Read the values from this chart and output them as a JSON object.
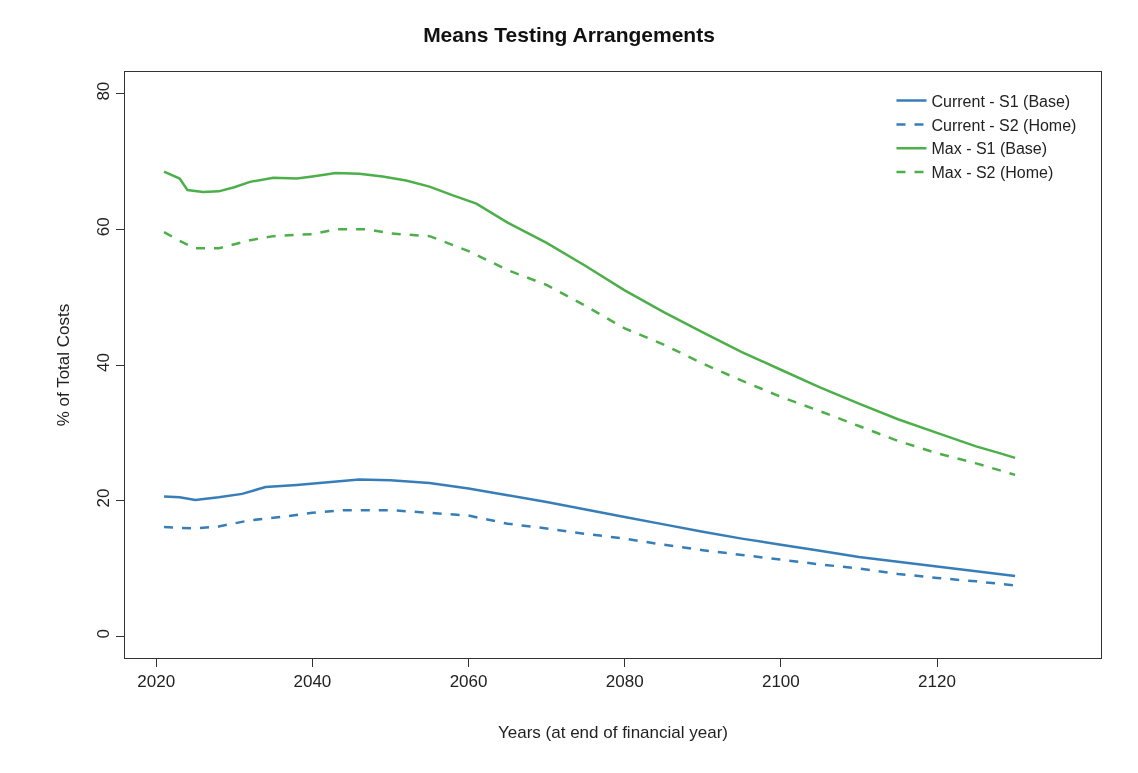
{
  "chart_data": {
    "type": "line",
    "title": "Means Testing Arrangements",
    "xlabel": "Years (at end of financial year)",
    "ylabel": "% of Total Costs",
    "xlim": [
      2016,
      2141
    ],
    "xticks": [
      2020,
      2040,
      2060,
      2080,
      2100,
      2120
    ],
    "ylim": [
      -3.2,
      83.2
    ],
    "yticks": [
      0,
      20,
      40,
      60,
      80
    ],
    "legend": "top right",
    "marker": "none",
    "series": [
      {
        "name": "Current - S1 (Base)",
        "color": "#377eb8",
        "line_style": "solid",
        "x": [
          2021,
          2023,
          2025,
          2028,
          2031,
          2034,
          2038,
          2042,
          2046,
          2050,
          2055,
          2060,
          2065,
          2070,
          2075,
          2080,
          2085,
          2090,
          2095,
          2100,
          2105,
          2110,
          2115,
          2120,
          2125,
          2130
        ],
        "values": [
          20.6,
          20.5,
          20.1,
          20.5,
          21,
          22,
          22.3,
          22.7,
          23.1,
          23,
          22.6,
          21.8,
          20.8,
          19.8,
          18.7,
          17.6,
          16.5,
          15.4,
          14.4,
          13.5,
          12.6,
          11.7,
          11,
          10.3,
          9.6,
          8.9
        ]
      },
      {
        "name": "Current - S2 (Home)",
        "color": "#377eb8",
        "line_style": "dashed",
        "x": [
          2021,
          2025,
          2028,
          2032,
          2036,
          2040,
          2044,
          2050,
          2055,
          2060,
          2065,
          2070,
          2075,
          2080,
          2085,
          2090,
          2095,
          2100,
          2105,
          2110,
          2115,
          2120,
          2125,
          2130
        ],
        "values": [
          16.1,
          15.9,
          16.2,
          17.1,
          17.6,
          18.2,
          18.6,
          18.6,
          18.2,
          17.8,
          16.6,
          15.9,
          15.1,
          14.4,
          13.5,
          12.7,
          12,
          11.3,
          10.6,
          10,
          9.2,
          8.6,
          8.1,
          7.5
        ]
      },
      {
        "name": "Max - S1 (Base)",
        "color": "#4daf4a",
        "line_style": "solid",
        "x": [
          2021,
          2023,
          2024,
          2026,
          2028,
          2030,
          2032,
          2035,
          2038,
          2040,
          2043,
          2046,
          2049,
          2052,
          2055,
          2058,
          2061,
          2065,
          2070,
          2075,
          2080,
          2085,
          2090,
          2095,
          2100,
          2105,
          2110,
          2115,
          2120,
          2125,
          2128,
          2130
        ],
        "values": [
          68.5,
          67.5,
          65.8,
          65.5,
          65.6,
          66.2,
          67,
          67.6,
          67.5,
          67.8,
          68.3,
          68.2,
          67.8,
          67.2,
          66.3,
          65,
          63.8,
          61,
          58,
          54.6,
          51,
          47.8,
          44.8,
          41.9,
          39.3,
          36.7,
          34.3,
          32,
          30,
          28,
          27,
          26.3
        ]
      },
      {
        "name": "Max - S2 (Home)",
        "color": "#4daf4a",
        "line_style": "dashed",
        "x": [
          2021,
          2023,
          2025,
          2028,
          2032,
          2035,
          2040,
          2043,
          2047,
          2050,
          2055,
          2060,
          2065,
          2070,
          2075,
          2080,
          2085,
          2090,
          2095,
          2100,
          2105,
          2110,
          2115,
          2120,
          2125,
          2130
        ],
        "values": [
          59.6,
          58.3,
          57.2,
          57.2,
          58.4,
          59,
          59.3,
          60,
          60,
          59.4,
          59,
          56.8,
          54,
          51.8,
          48.7,
          45.4,
          43,
          40.2,
          37.7,
          35.3,
          33.2,
          31,
          28.8,
          27,
          25.5,
          23.8
        ]
      }
    ]
  }
}
